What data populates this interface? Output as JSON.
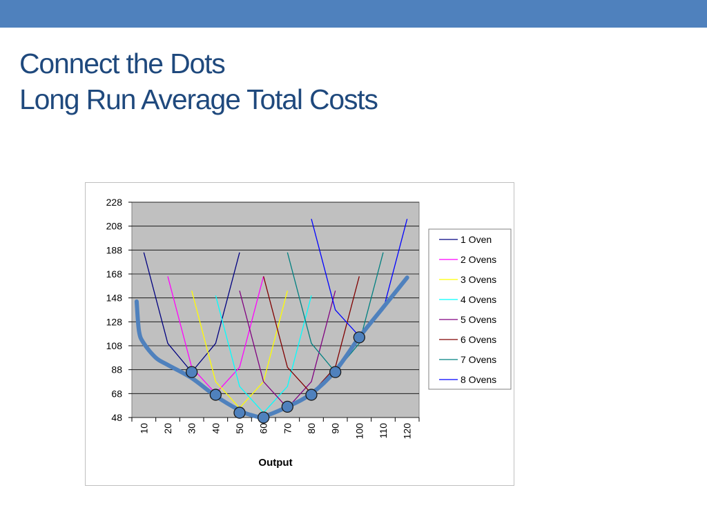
{
  "slide": {
    "title_line1": "Connect the Dots",
    "title_line2": "Long Run Average Total Costs",
    "accent_color": "#4f81bd",
    "title_color": "#1f497d"
  },
  "chart_data": {
    "type": "line",
    "xlabel": "Output",
    "ylabel": "",
    "categories": [
      "10",
      "20",
      "30",
      "40",
      "50",
      "60",
      "70",
      "80",
      "90",
      "100",
      "110",
      "120"
    ],
    "yticks": [
      48,
      68,
      88,
      108,
      128,
      148,
      168,
      188,
      208,
      228
    ],
    "ylim": [
      48,
      228
    ],
    "grid": true,
    "plot_background": "#c0c0c0",
    "legend_position": "right",
    "series": [
      {
        "name": "1 Oven",
        "color": "#000080",
        "values": [
          186,
          110,
          86,
          110,
          186,
          null,
          null,
          null,
          null,
          null,
          null,
          null
        ]
      },
      {
        "name": "2 Ovens",
        "color": "#ff00ff",
        "values": [
          null,
          166,
          90,
          68,
          90,
          166,
          null,
          null,
          null,
          null,
          null,
          null
        ]
      },
      {
        "name": "3 Ovens",
        "color": "#ffff00",
        "values": [
          null,
          null,
          154,
          78,
          56,
          78,
          154,
          null,
          null,
          null,
          null,
          null
        ]
      },
      {
        "name": "4 Ovens",
        "color": "#00ffff",
        "values": [
          null,
          null,
          null,
          150,
          74,
          52,
          74,
          150,
          null,
          null,
          null,
          null
        ]
      },
      {
        "name": "5 Ovens",
        "color": "#800080",
        "values": [
          null,
          null,
          null,
          null,
          154,
          78,
          56,
          78,
          154,
          null,
          null,
          null
        ]
      },
      {
        "name": "6 Ovens",
        "color": "#800000",
        "values": [
          null,
          null,
          null,
          null,
          null,
          166,
          90,
          68,
          90,
          166,
          null,
          null
        ]
      },
      {
        "name": "7 Ovens",
        "color": "#008080",
        "values": [
          null,
          null,
          null,
          null,
          null,
          null,
          186,
          110,
          86,
          110,
          186,
          null
        ]
      },
      {
        "name": "8 Ovens",
        "color": "#0000ff",
        "values": [
          null,
          null,
          null,
          null,
          null,
          null,
          null,
          214,
          138,
          116,
          138,
          214
        ]
      }
    ],
    "minimum_points": [
      {
        "x": "30",
        "y": 86
      },
      {
        "x": "40",
        "y": 67
      },
      {
        "x": "50",
        "y": 52
      },
      {
        "x": "60",
        "y": 48
      },
      {
        "x": "70",
        "y": 57
      },
      {
        "x": "80",
        "y": 67
      },
      {
        "x": "90",
        "y": 86
      },
      {
        "x": "100",
        "y": 115
      }
    ],
    "lratc_curve": {
      "color": "#4f81bd",
      "x": [
        7,
        8,
        10,
        15,
        20,
        30,
        40,
        50,
        55,
        60,
        70,
        80,
        90,
        100,
        110,
        120
      ],
      "y": [
        145,
        120,
        110,
        98,
        92,
        81,
        66,
        54,
        50,
        49,
        57,
        68,
        87,
        115,
        140,
        165
      ]
    }
  }
}
